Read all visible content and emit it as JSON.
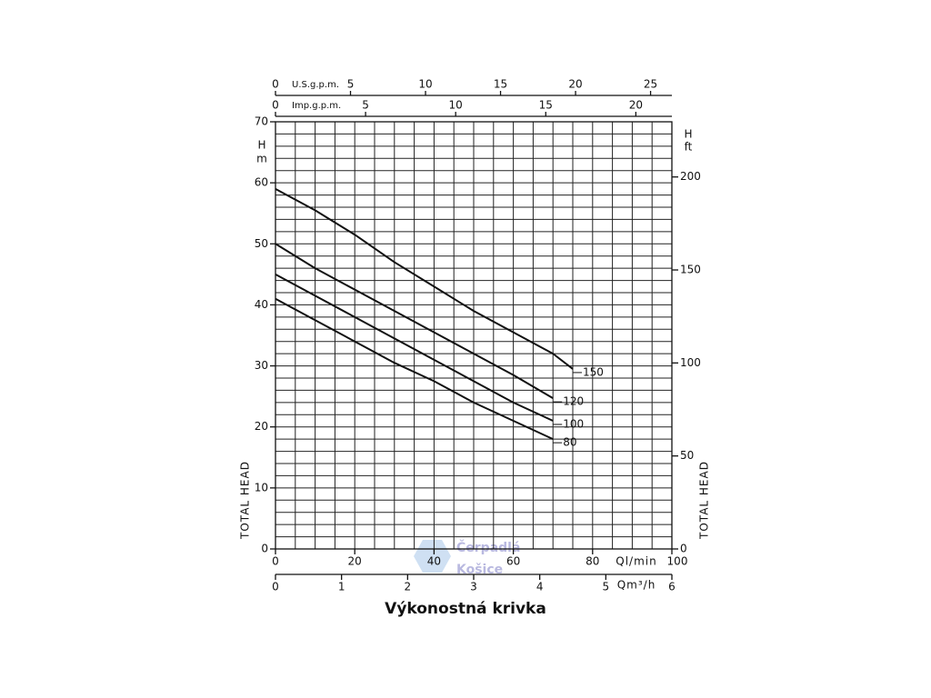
{
  "chart_data": {
    "type": "line",
    "caption": "Výkonostná krivka",
    "watermark": [
      "Čerpadlá",
      "Košice"
    ],
    "x": [
      0,
      10,
      20,
      30,
      40,
      50,
      60,
      70,
      75
    ],
    "xlim": [
      0,
      100
    ],
    "xticks": [
      0,
      20,
      40,
      60,
      80,
      100
    ],
    "xlabel": "Ql/min",
    "x_grid": [
      0,
      5,
      10,
      15,
      20,
      25,
      30,
      35,
      40,
      45,
      50,
      55,
      60,
      65,
      70,
      75,
      80,
      85,
      90,
      95,
      100
    ],
    "ylim": [
      0,
      70
    ],
    "yticks": [
      0,
      10,
      20,
      30,
      40,
      50,
      60,
      70
    ],
    "y_grid": [
      0,
      2,
      4,
      6,
      8,
      10,
      12,
      14,
      16,
      18,
      20,
      22,
      24,
      26,
      28,
      30,
      32,
      34,
      36,
      38,
      40,
      42,
      44,
      46,
      48,
      50,
      52,
      54,
      56,
      58,
      60,
      62,
      64,
      66,
      68,
      70
    ],
    "ylabel": "TOTAL HEAD",
    "y_symbol": "H",
    "y_unit": "m",
    "y2lim": [
      0,
      229.66
    ],
    "y2ticks": [
      0,
      50,
      100,
      150,
      200
    ],
    "y2label": "TOTAL HEAD",
    "y2_symbol": "H",
    "y2_unit": "ft",
    "secondary_x_axes": [
      {
        "label": "Qm³/h",
        "side": "bottom",
        "lim": [
          0,
          6
        ],
        "ticks": [
          0,
          1,
          2,
          3,
          4,
          5,
          6
        ]
      },
      {
        "label": "Imp.g.p.m.",
        "side": "top",
        "lim": [
          0,
          22.0
        ],
        "ticks": [
          0,
          5,
          10,
          15,
          20
        ]
      },
      {
        "label": "U.S.g.p.m.",
        "side": "top",
        "lim": [
          0,
          26.42
        ],
        "ticks": [
          0,
          5,
          10,
          15,
          20,
          25
        ]
      }
    ],
    "grid": true,
    "series": [
      {
        "name": "150",
        "color": "#111111",
        "values": [
          59,
          55.5,
          51.5,
          47,
          43,
          39,
          35.5,
          32,
          29.5
        ]
      },
      {
        "name": "120",
        "color": "#111111",
        "values": [
          50,
          46,
          42.5,
          39,
          35.5,
          32,
          28.5,
          24.7,
          null
        ]
      },
      {
        "name": "100",
        "color": "#111111",
        "values": [
          45,
          41.5,
          38,
          34.5,
          31,
          27.5,
          24,
          21,
          null
        ]
      },
      {
        "name": "80",
        "color": "#111111",
        "values": [
          41,
          37.5,
          34,
          30.5,
          27.5,
          24,
          21,
          18,
          null
        ]
      }
    ]
  }
}
